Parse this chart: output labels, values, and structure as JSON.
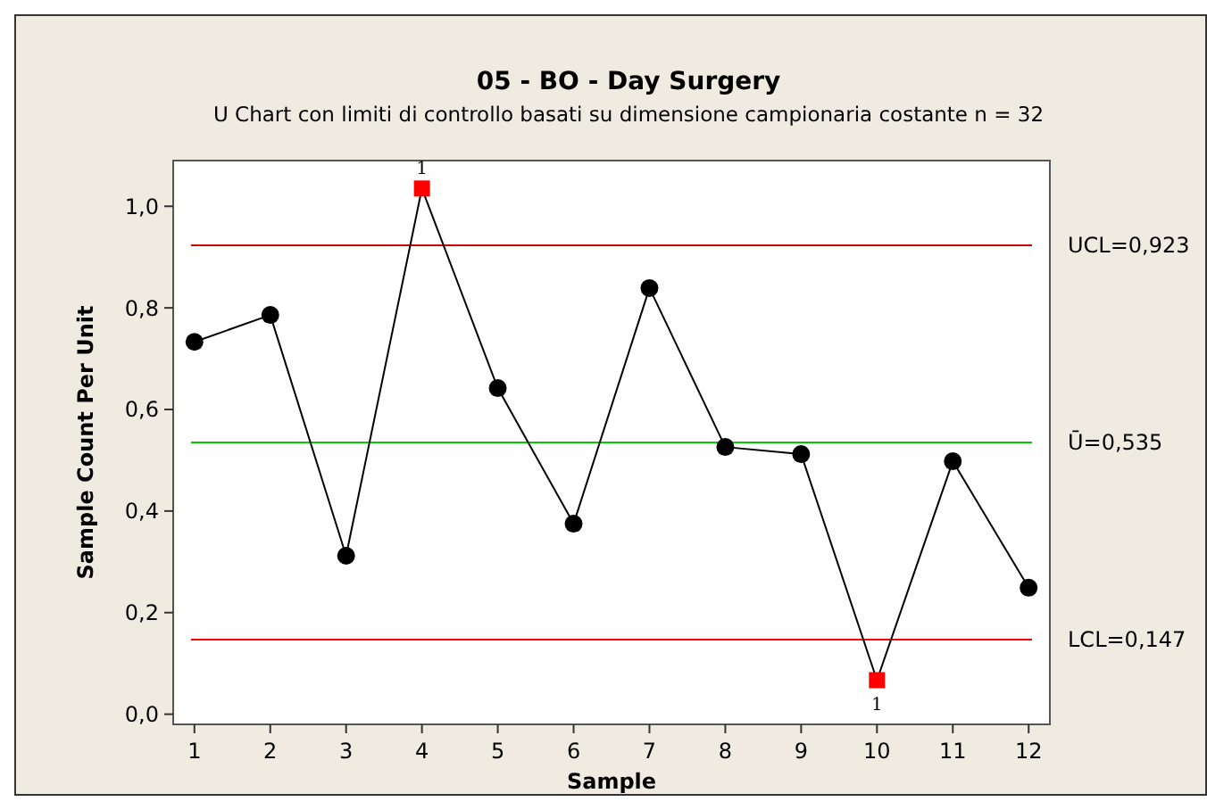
{
  "chart_data": {
    "type": "line",
    "title": "05 - BO - Day Surgery",
    "subtitle": "U Chart con limiti di controllo basati su dimensione campionaria costante n = 32",
    "xlabel": "Sample",
    "ylabel": "Sample Count Per Unit",
    "x": [
      1,
      2,
      3,
      4,
      5,
      6,
      7,
      8,
      9,
      10,
      11,
      12
    ],
    "series": [
      {
        "color": "#000000",
        "marker": "none",
        "values": [
          0.733,
          0.786,
          0.312,
          1.035,
          0.642,
          0.375,
          0.839,
          0.526,
          0.512,
          0.067,
          0.498,
          0.249
        ]
      },
      {
        "type": "scatter",
        "color": "#000000",
        "marker": "circle",
        "x": [
          1,
          2,
          3,
          5,
          6,
          7,
          8,
          9,
          11,
          12
        ],
        "values": [
          0.733,
          0.786,
          0.312,
          0.642,
          0.375,
          0.839,
          0.526,
          0.512,
          0.498,
          0.249
        ]
      },
      {
        "type": "scatter",
        "color": "#ff0000",
        "marker": "square",
        "x": [
          4,
          10
        ],
        "values": [
          1.035,
          0.067
        ]
      }
    ],
    "ref_lines": [
      {
        "axis": "y",
        "value": 0.923,
        "label": "UCL=0,923",
        "color": "#cc0000"
      },
      {
        "axis": "y",
        "value": 0.535,
        "label": "Ū=0,535",
        "color": "#00cc00"
      },
      {
        "axis": "y",
        "value": 0.147,
        "label": "LCL=0,147",
        "color": "#ff0000"
      }
    ],
    "annotations": [
      {
        "text": "1",
        "x": 4,
        "y": 1.035
      },
      {
        "text": "1",
        "x": 10,
        "y": 0.067
      }
    ],
    "xlim": [
      0.72,
      12.28
    ],
    "xticks": [
      1,
      2,
      3,
      4,
      5,
      6,
      7,
      8,
      9,
      10,
      11,
      12
    ],
    "ylim": [
      -0.02,
      1.09
    ],
    "yticks": [
      {
        "value": 0,
        "label": "0,0"
      },
      {
        "value": 0.2,
        "label": "0,2"
      },
      {
        "value": 0.4,
        "label": "0,4"
      },
      {
        "value": 0.6,
        "label": "0,6"
      },
      {
        "value": 0.8,
        "label": "0,8"
      },
      {
        "value": 1,
        "label": "1,0"
      }
    ],
    "grid": false
  }
}
